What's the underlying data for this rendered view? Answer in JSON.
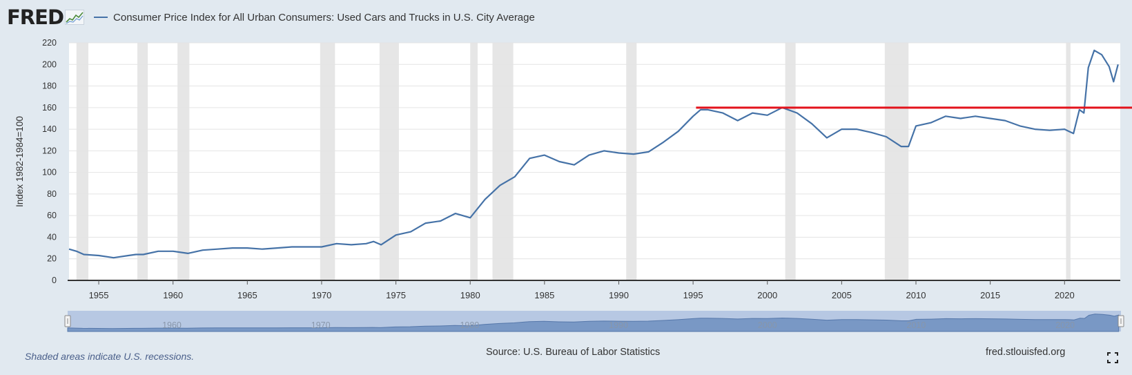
{
  "header": {
    "logo_text": "FRED",
    "series_label": "Consumer Price Index for All Urban Consumers: Used Cars and Trucks in U.S. City Average"
  },
  "colors": {
    "background": "#e1e9f0",
    "plot_background": "#ffffff",
    "series": "#4572a7",
    "recession_shade": "#e6e6e6",
    "reference_line": "#e3121b",
    "navigator_fill": "#b7c8e3",
    "navigator_series": "#6f8fc0"
  },
  "icons": {
    "logo_graph": "line-graph-icon",
    "fullscreen": "fullscreen-icon"
  },
  "footer": {
    "note": "Shaded areas indicate U.S. recessions.",
    "source": "Source: U.S. Bureau of Labor Statistics",
    "site": "fred.stlouisfed.org"
  },
  "chart_data": {
    "type": "line",
    "ylabel": "Index 1982-1984=100",
    "ylim": [
      0,
      220
    ],
    "xlim": [
      1953.0,
      2023.75
    ],
    "y_ticks": [
      0,
      20,
      40,
      60,
      80,
      100,
      120,
      140,
      160,
      180,
      200,
      220
    ],
    "x_ticks": [
      1955,
      1960,
      1965,
      1970,
      1975,
      1980,
      1985,
      1990,
      1995,
      2000,
      2005,
      2010,
      2015,
      2020
    ],
    "grid": true,
    "navigator_labels": [
      "1960",
      "1970",
      "1980",
      "1990",
      "2000",
      "2010",
      "2020"
    ],
    "recessions": [
      [
        1953.5,
        1954.3
      ],
      [
        1957.6,
        1958.3
      ],
      [
        1960.3,
        1961.1
      ],
      [
        1969.9,
        1970.9
      ],
      [
        1973.9,
        1975.2
      ],
      [
        1980.0,
        1980.5
      ],
      [
        1981.5,
        1982.9
      ],
      [
        1990.5,
        1991.2
      ],
      [
        2001.2,
        2001.9
      ],
      [
        2007.9,
        2009.5
      ],
      [
        2020.1,
        2020.4
      ]
    ],
    "reference_line": {
      "y": 160,
      "x_start": 1995.2
    },
    "series": [
      {
        "name": "Consumer Price Index for All Urban Consumers: Used Cars and Trucks in U.S. City Average",
        "x": [
          1953.0,
          1953.5,
          1954.0,
          1955.0,
          1956.0,
          1957.0,
          1957.5,
          1958.0,
          1959.0,
          1960.0,
          1961.0,
          1962.0,
          1963.0,
          1964.0,
          1965.0,
          1966.0,
          1967.0,
          1968.0,
          1969.0,
          1970.0,
          1971.0,
          1972.0,
          1973.0,
          1973.5,
          1974.0,
          1975.0,
          1976.0,
          1977.0,
          1978.0,
          1979.0,
          1980.0,
          1981.0,
          1982.0,
          1983.0,
          1984.0,
          1985.0,
          1986.0,
          1987.0,
          1988.0,
          1989.0,
          1990.0,
          1991.0,
          1992.0,
          1993.0,
          1994.0,
          1995.0,
          1995.5,
          1996.0,
          1997.0,
          1998.0,
          1999.0,
          2000.0,
          2001.0,
          2002.0,
          2003.0,
          2004.0,
          2005.0,
          2006.0,
          2007.0,
          2008.0,
          2009.0,
          2009.5,
          2010.0,
          2011.0,
          2012.0,
          2013.0,
          2014.0,
          2015.0,
          2016.0,
          2017.0,
          2018.0,
          2019.0,
          2020.0,
          2020.3,
          2020.6,
          2021.0,
          2021.3,
          2021.6,
          2022.0,
          2022.5,
          2023.0,
          2023.3,
          2023.6
        ],
        "values": [
          29,
          27,
          24,
          23,
          21,
          23,
          24,
          24,
          27,
          27,
          25,
          28,
          29,
          30,
          30,
          29,
          30,
          31,
          31,
          31,
          34,
          33,
          34,
          36,
          33,
          42,
          45,
          53,
          55,
          62,
          58,
          75,
          88,
          96,
          113,
          116,
          110,
          107,
          116,
          120,
          118,
          117,
          119,
          128,
          138,
          152,
          158,
          158,
          155,
          148,
          155,
          153,
          160,
          155,
          145,
          132,
          140,
          140,
          137,
          133,
          124,
          124,
          143,
          146,
          152,
          150,
          152,
          150,
          148,
          143,
          140,
          139,
          140,
          138,
          136,
          158,
          155,
          197,
          213,
          209,
          198,
          184,
          200
        ]
      }
    ]
  }
}
